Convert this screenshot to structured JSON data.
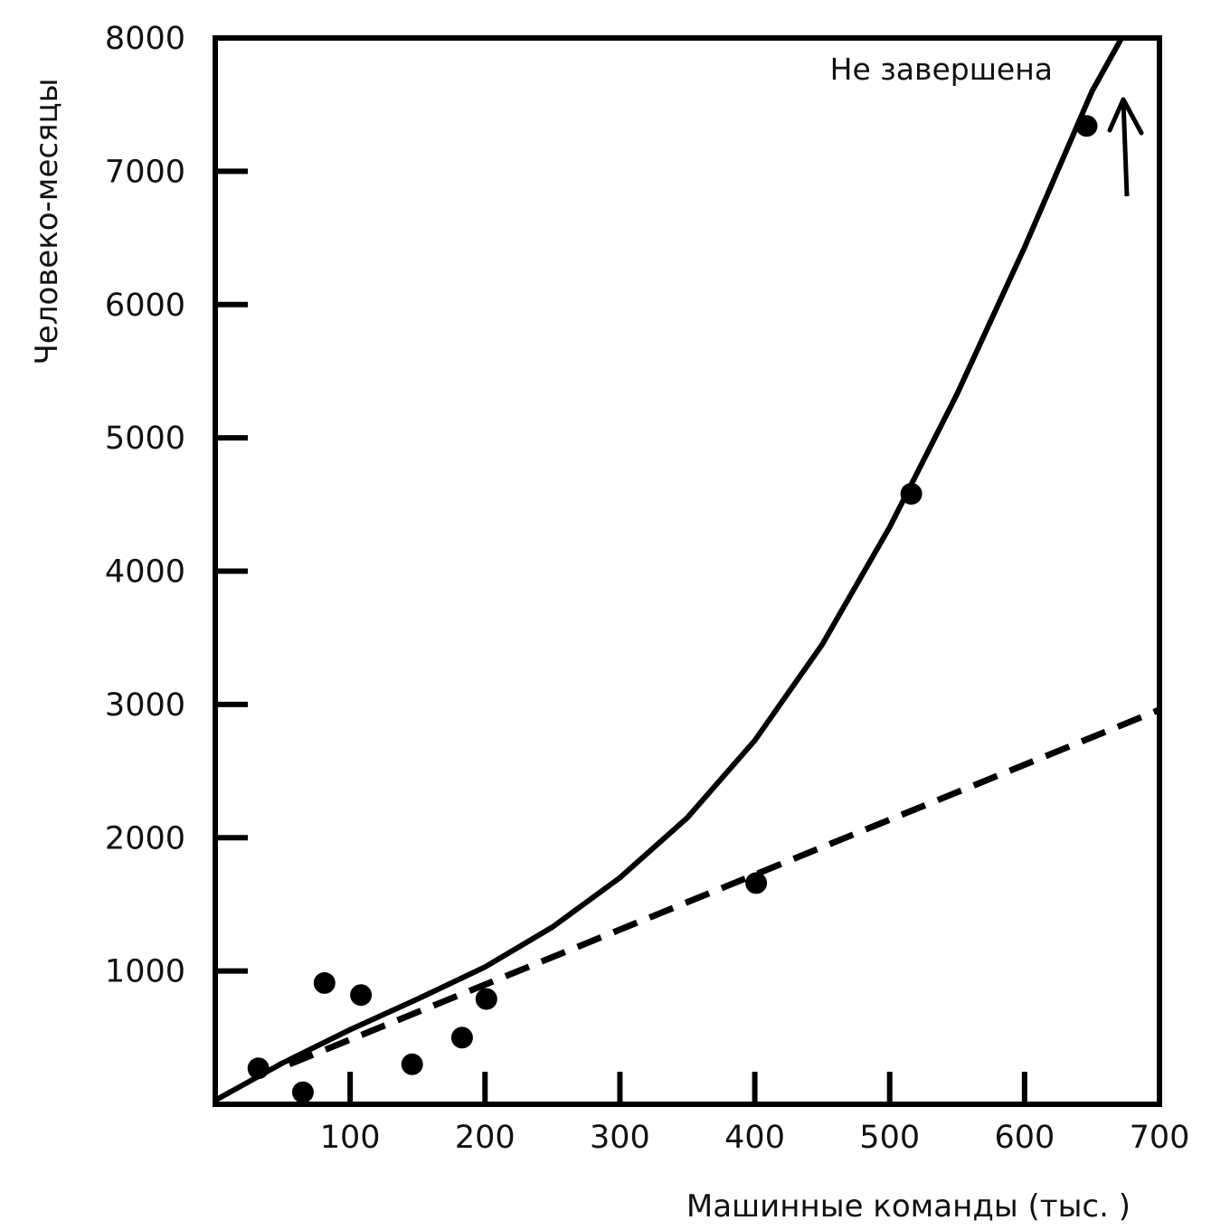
{
  "chart_data": {
    "type": "scatter",
    "title": "",
    "xlabel": "Машинные команды (тыс. )",
    "ylabel": "Человеко-месяцы",
    "xlim": [
      0,
      700
    ],
    "ylim": [
      0,
      8000
    ],
    "x_ticks": [
      "100",
      "200",
      "300",
      "400",
      "500",
      "600",
      "700"
    ],
    "y_ticks": [
      "1000",
      "2000",
      "3000",
      "4000",
      "5000",
      "6000",
      "7000",
      "8000"
    ],
    "grid": false,
    "legend": "none",
    "colors": {
      "ink": "#000000",
      "background": "#ffffff"
    },
    "series": [
      {
        "kind": "points",
        "points": [
          {
            "x": 32,
            "y": 270
          },
          {
            "x": 65,
            "y": 90
          },
          {
            "x": 81,
            "y": 910
          },
          {
            "x": 108,
            "y": 820
          },
          {
            "x": 146,
            "y": 300
          },
          {
            "x": 183,
            "y": 500
          },
          {
            "x": 201,
            "y": 790
          },
          {
            "x": 401,
            "y": 1660
          },
          {
            "x": 516,
            "y": 4580
          },
          {
            "x": 646,
            "y": 7340
          }
        ]
      },
      {
        "kind": "solid-curve",
        "points": [
          {
            "x": 0,
            "y": 30
          },
          {
            "x": 50,
            "y": 310
          },
          {
            "x": 100,
            "y": 560
          },
          {
            "x": 150,
            "y": 790
          },
          {
            "x": 200,
            "y": 1030
          },
          {
            "x": 250,
            "y": 1330
          },
          {
            "x": 300,
            "y": 1700
          },
          {
            "x": 350,
            "y": 2150
          },
          {
            "x": 400,
            "y": 2730
          },
          {
            "x": 450,
            "y": 3450
          },
          {
            "x": 500,
            "y": 4330
          },
          {
            "x": 550,
            "y": 5330
          },
          {
            "x": 600,
            "y": 6430
          },
          {
            "x": 650,
            "y": 7600
          },
          {
            "x": 672,
            "y": 8000
          }
        ]
      },
      {
        "kind": "dashed-line",
        "points": [
          {
            "x": 55,
            "y": 300
          },
          {
            "x": 700,
            "y": 2960
          }
        ]
      }
    ],
    "annotations": [
      {
        "text": "Не завершена",
        "x": 530,
        "y": 7690
      },
      {
        "type": "arrow",
        "from": {
          "x": 677,
          "y": 6800
        },
        "to": {
          "x": 675,
          "y": 7500
        }
      }
    ]
  }
}
